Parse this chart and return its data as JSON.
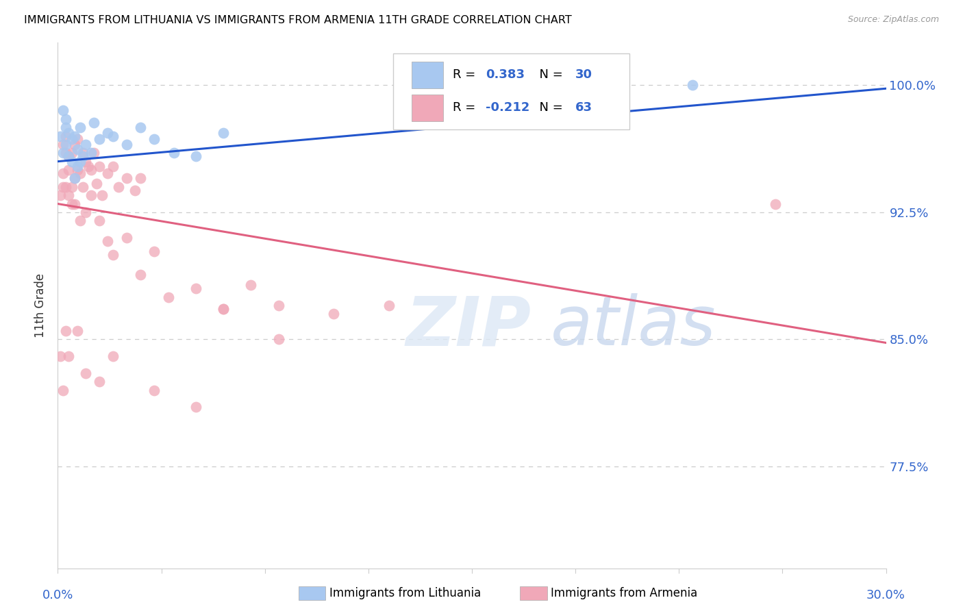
{
  "title": "IMMIGRANTS FROM LITHUANIA VS IMMIGRANTS FROM ARMENIA 11TH GRADE CORRELATION CHART",
  "source": "Source: ZipAtlas.com",
  "ylabel": "11th Grade",
  "ytick_labels": [
    "100.0%",
    "92.5%",
    "85.0%",
    "77.5%"
  ],
  "ytick_values": [
    1.0,
    0.925,
    0.85,
    0.775
  ],
  "xlim": [
    0.0,
    0.3
  ],
  "ylim": [
    0.715,
    1.025
  ],
  "legend_r_lithuania": "0.383",
  "legend_n_lithuania": "30",
  "legend_r_armenia": "-0.212",
  "legend_n_armenia": "63",
  "color_lithuania": "#a8c8f0",
  "color_armenia": "#f0a8b8",
  "color_line_lithuania": "#2255cc",
  "color_line_armenia": "#e06080",
  "watermark_zip": "ZIP",
  "watermark_atlas": "atlas",
  "lithuania_x": [
    0.001,
    0.002,
    0.002,
    0.003,
    0.003,
    0.004,
    0.004,
    0.005,
    0.005,
    0.006,
    0.007,
    0.007,
    0.008,
    0.009,
    0.01,
    0.012,
    0.013,
    0.015,
    0.018,
    0.02,
    0.025,
    0.03,
    0.035,
    0.042,
    0.05,
    0.06,
    0.003,
    0.006,
    0.008,
    0.23
  ],
  "lithuania_y": [
    0.97,
    0.985,
    0.96,
    0.975,
    0.965,
    0.972,
    0.958,
    0.968,
    0.955,
    0.97,
    0.962,
    0.952,
    0.975,
    0.958,
    0.965,
    0.96,
    0.978,
    0.968,
    0.972,
    0.97,
    0.965,
    0.975,
    0.968,
    0.96,
    0.958,
    0.972,
    0.98,
    0.945,
    0.955,
    1.0
  ],
  "armenia_x": [
    0.001,
    0.001,
    0.002,
    0.002,
    0.003,
    0.003,
    0.004,
    0.004,
    0.005,
    0.005,
    0.006,
    0.006,
    0.007,
    0.007,
    0.008,
    0.009,
    0.009,
    0.01,
    0.011,
    0.012,
    0.013,
    0.014,
    0.015,
    0.016,
    0.018,
    0.02,
    0.022,
    0.025,
    0.028,
    0.03,
    0.003,
    0.004,
    0.005,
    0.006,
    0.008,
    0.01,
    0.012,
    0.015,
    0.018,
    0.02,
    0.025,
    0.03,
    0.035,
    0.04,
    0.05,
    0.06,
    0.07,
    0.08,
    0.1,
    0.12,
    0.002,
    0.003,
    0.004,
    0.007,
    0.01,
    0.015,
    0.02,
    0.035,
    0.06,
    0.08,
    0.002,
    0.05,
    0.26
  ],
  "armenia_y": [
    0.935,
    0.84,
    0.965,
    0.94,
    0.97,
    0.96,
    0.958,
    0.935,
    0.96,
    0.94,
    0.965,
    0.93,
    0.968,
    0.95,
    0.948,
    0.96,
    0.94,
    0.955,
    0.952,
    0.95,
    0.96,
    0.942,
    0.952,
    0.935,
    0.948,
    0.952,
    0.94,
    0.945,
    0.938,
    0.945,
    0.94,
    0.95,
    0.93,
    0.945,
    0.92,
    0.925,
    0.935,
    0.92,
    0.908,
    0.9,
    0.91,
    0.888,
    0.902,
    0.875,
    0.88,
    0.868,
    0.882,
    0.87,
    0.865,
    0.87,
    0.948,
    0.855,
    0.84,
    0.855,
    0.83,
    0.825,
    0.84,
    0.82,
    0.868,
    0.85,
    0.82,
    0.81,
    0.93
  ],
  "line_lith_x0": 0.0,
  "line_lith_x1": 0.3,
  "line_lith_y0": 0.955,
  "line_lith_y1": 0.998,
  "line_arm_x0": 0.0,
  "line_arm_x1": 0.3,
  "line_arm_y0": 0.93,
  "line_arm_y1": 0.848
}
